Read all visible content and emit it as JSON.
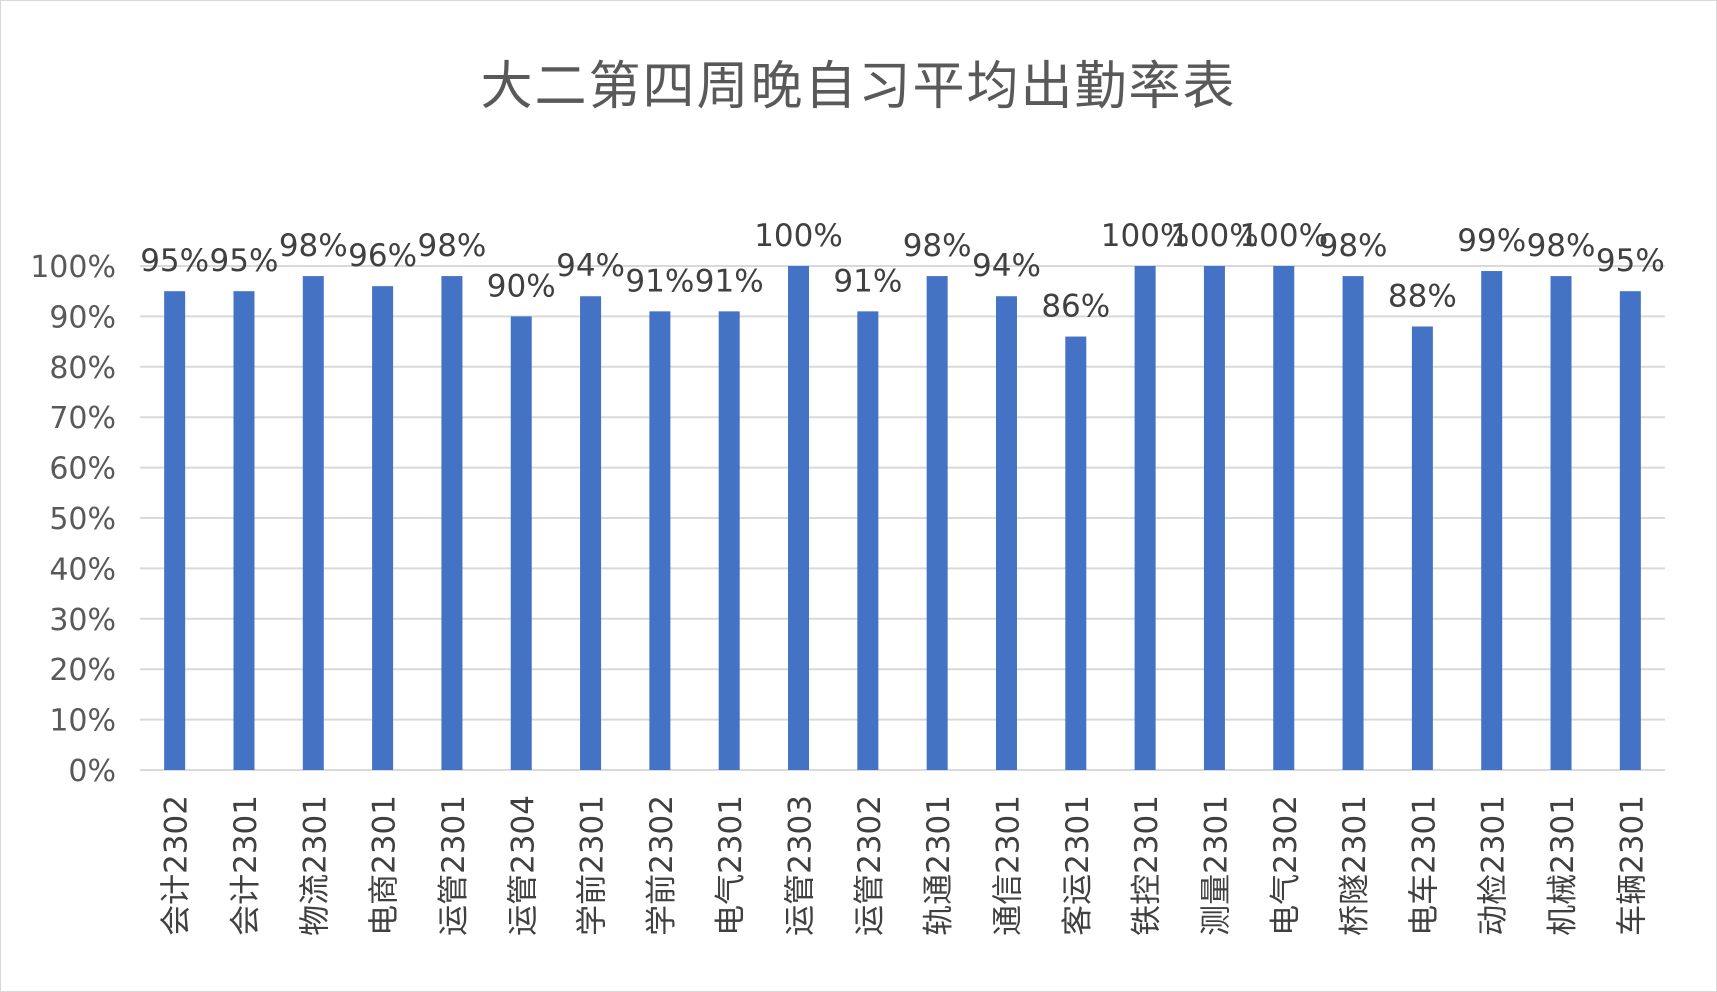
{
  "chart_data": {
    "type": "bar",
    "title": "大二第四周晚自习平均出勤率表",
    "categories": [
      "会计2302",
      "会计2301",
      "物流2301",
      "电商2301",
      "运管2301",
      "运管2304",
      "学前2301",
      "学前2302",
      "电气2301",
      "运管2303",
      "运管2302",
      "轨通2301",
      "通信2301",
      "客运2301",
      "铁控2301",
      "测量2301",
      "电气2302",
      "桥隧2301",
      "电车2301",
      "动检2301",
      "机械2301",
      "车辆2301"
    ],
    "values": [
      95,
      95,
      98,
      96,
      98,
      90,
      94,
      91,
      91,
      100,
      91,
      98,
      94,
      86,
      100,
      100,
      100,
      98,
      88,
      99,
      98,
      95
    ],
    "data_labels": [
      "95%",
      "95%",
      "98%",
      "96%",
      "98%",
      "90%",
      "94%",
      "91%",
      "91%",
      "100%",
      "91%",
      "98%",
      "94%",
      "86%",
      "100%",
      "100%",
      "100%",
      "98%",
      "88%",
      "99%",
      "98%",
      "95%"
    ],
    "y_ticks": [
      "0%",
      "10%",
      "20%",
      "30%",
      "40%",
      "50%",
      "60%",
      "70%",
      "80%",
      "90%",
      "100%"
    ],
    "ylim": [
      0,
      100
    ],
    "grid": true,
    "legend": "none",
    "colors": {
      "bar": "#4472C4",
      "grid": "#d9d9d9",
      "text": "#595959"
    }
  }
}
